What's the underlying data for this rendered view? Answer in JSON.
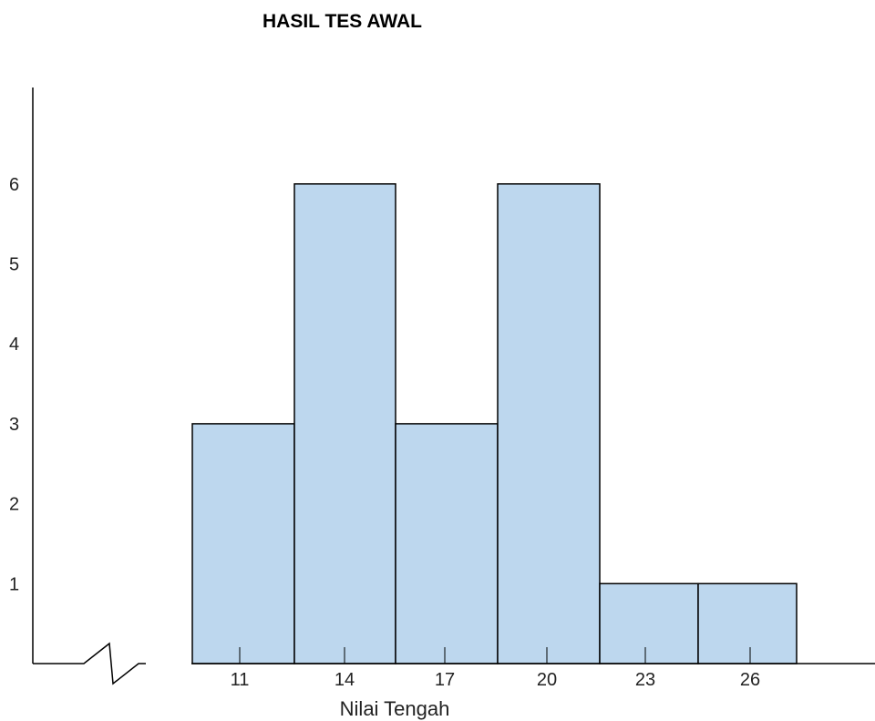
{
  "chart_data": {
    "type": "bar",
    "title": "HASIL TES AWAL",
    "xlabel": "Nilai Tengah",
    "ylabel": "",
    "categories": [
      "11",
      "14",
      "17",
      "20",
      "23",
      "26"
    ],
    "values": [
      3,
      6,
      3,
      6,
      1,
      1
    ],
    "yticks": [
      "1",
      "2",
      "3",
      "4",
      "5",
      "6"
    ],
    "ylim": [
      0,
      7
    ],
    "bar_color": "#bdd7ee",
    "grid": false,
    "legend": "none",
    "axis_break": true
  }
}
